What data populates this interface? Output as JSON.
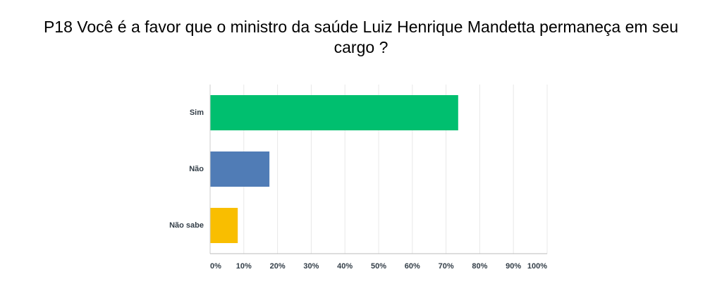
{
  "chart_data": {
    "type": "bar",
    "orientation": "horizontal",
    "title": "P18 Você é a favor que o ministro da saúde Luiz Henrique Mandetta permaneça em seu cargo ?",
    "categories": [
      "Sim",
      "Não",
      "Não sabe"
    ],
    "values": [
      73.6,
      17.6,
      8.2
    ],
    "colors": [
      "#00bf6f",
      "#507cb6",
      "#f9be00"
    ],
    "xlim": [
      0,
      100
    ],
    "xticks": [
      {
        "value": 0,
        "label": "0%"
      },
      {
        "value": 10,
        "label": "10%"
      },
      {
        "value": 20,
        "label": "20%"
      },
      {
        "value": 30,
        "label": "30%"
      },
      {
        "value": 40,
        "label": "40%"
      },
      {
        "value": 50,
        "label": "50%"
      },
      {
        "value": 60,
        "label": "60%"
      },
      {
        "value": 70,
        "label": "70%"
      },
      {
        "value": 80,
        "label": "80%"
      },
      {
        "value": 90,
        "label": "90%"
      },
      {
        "value": 100,
        "label": "100%"
      }
    ],
    "grid": true
  }
}
